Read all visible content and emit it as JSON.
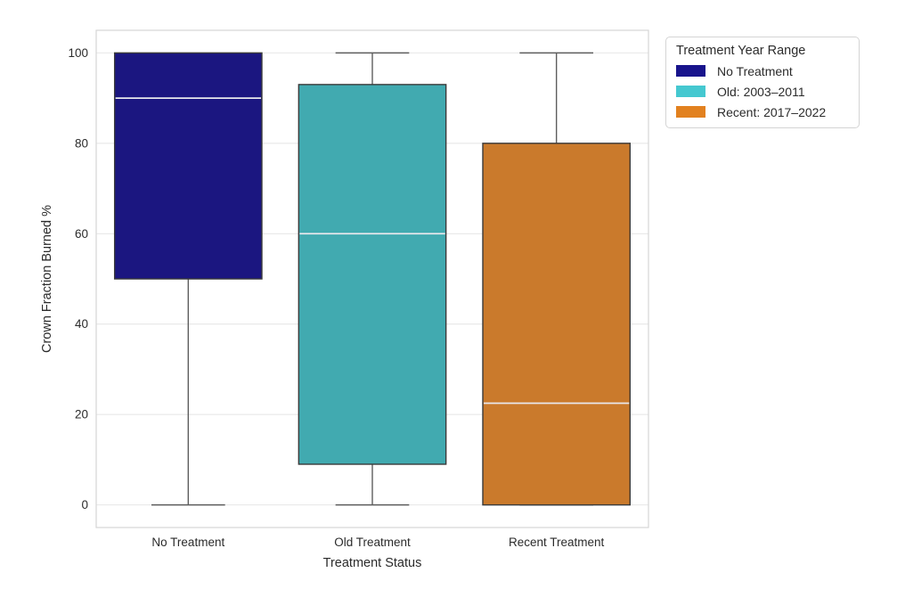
{
  "legend": {
    "title": "Treatment Year Range",
    "entries": [
      {
        "label": "No Treatment",
        "color": "#18148c"
      },
      {
        "label": "Old: 2003–2011",
        "color": "#45c8d0"
      },
      {
        "label": "Recent: 2017–2022",
        "color": "#e2811f"
      }
    ]
  },
  "chart_data": {
    "type": "box",
    "title": "",
    "xlabel": "Treatment Status",
    "ylabel": "Crown Fraction Burned %",
    "categories": [
      "No Treatment",
      "Old Treatment",
      "Recent Treatment"
    ],
    "yticks": [
      0,
      20,
      40,
      60,
      80,
      100
    ],
    "ylim": [
      -5,
      105
    ],
    "grid": "horizontal",
    "legend_position": "outside-upper-right",
    "series": [
      {
        "category": "No Treatment",
        "legend_label": "No Treatment",
        "whisker_low": 0,
        "q1": 50,
        "median": 90,
        "q3": 100,
        "whisker_high": 100,
        "fill": "#1b1680"
      },
      {
        "category": "Old Treatment",
        "legend_label": "Old: 2003–2011",
        "whisker_low": 0,
        "q1": 9,
        "median": 60,
        "q3": 93,
        "whisker_high": 100,
        "fill": "#41aab0"
      },
      {
        "category": "Recent Treatment",
        "legend_label": "Recent: 2017–2022",
        "whisker_low": 0,
        "q1": 0,
        "median": 22.5,
        "q3": 80,
        "whisker_high": 100,
        "fill": "#ca7a2c"
      }
    ],
    "colors": {
      "grid": "#e7e7e7",
      "spine": "#d6d6d6",
      "whisker": "#5d5d5d",
      "box_edge": "#3a3a3a",
      "median_line": "#e8e8ec",
      "text": "#2b2b2b"
    }
  }
}
